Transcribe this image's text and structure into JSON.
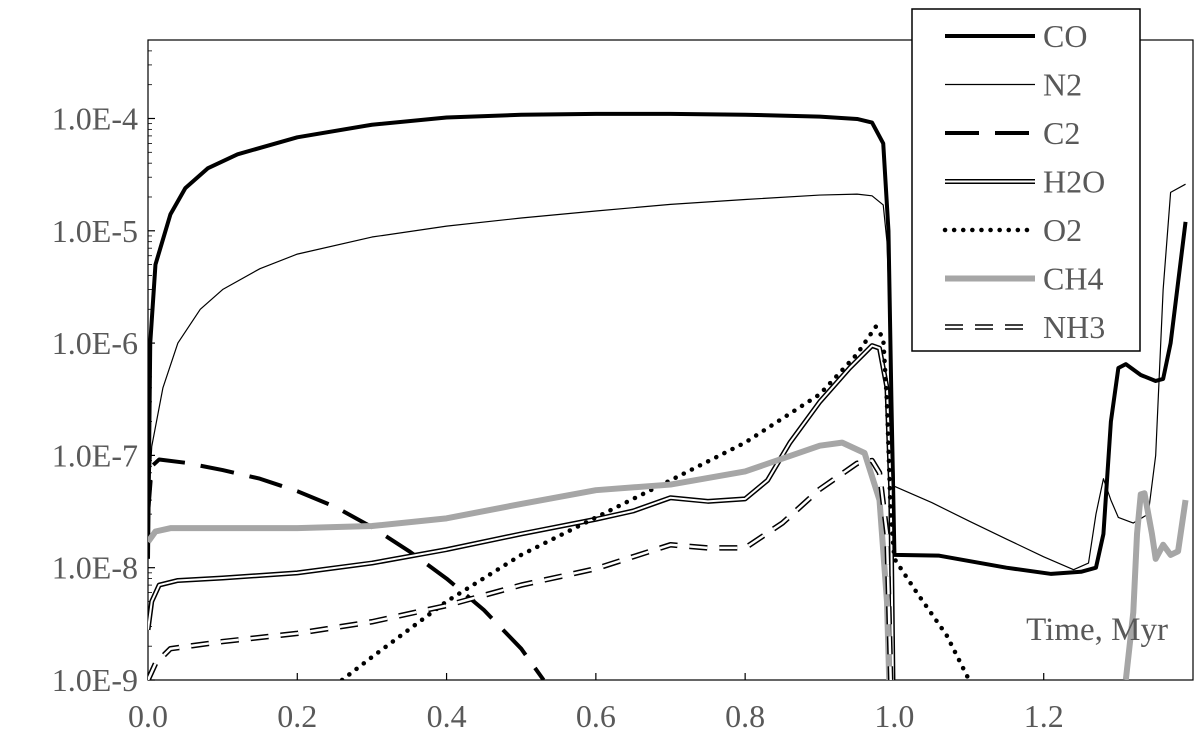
{
  "chart_data": {
    "type": "line",
    "title": "",
    "xlabel": "Time, Myr",
    "ylabel": "",
    "yscale": "log",
    "xlim": [
      0,
      1.4
    ],
    "ylim": [
      1e-09,
      0.0005
    ],
    "xticks": [
      0.0,
      0.2,
      0.4,
      0.6,
      0.8,
      1.0,
      1.2
    ],
    "xtick_labels": [
      "0.0",
      "0.2",
      "0.4",
      "0.6",
      "0.8",
      "1.0",
      "1.2"
    ],
    "yticks": [
      1e-09,
      1e-08,
      1e-07,
      1e-06,
      1e-05,
      0.0001
    ],
    "ytick_labels": [
      "1.0E-9",
      "1.0E-8",
      "1.0E-7",
      "1.0E-6",
      "1.0E-5",
      "1.0E-4"
    ],
    "grid": false,
    "legend_position": "top-right",
    "series": [
      {
        "name": "CO",
        "color": "#000000",
        "style": "thick-solid",
        "points": [
          [
            0,
            1.2e-08
          ],
          [
            0.003,
            1e-06
          ],
          [
            0.01,
            5e-06
          ],
          [
            0.03,
            1.4e-05
          ],
          [
            0.05,
            2.4e-05
          ],
          [
            0.08,
            3.6e-05
          ],
          [
            0.12,
            4.8e-05
          ],
          [
            0.2,
            6.8e-05
          ],
          [
            0.3,
            8.8e-05
          ],
          [
            0.4,
            0.000102
          ],
          [
            0.5,
            0.000108
          ],
          [
            0.6,
            0.00011
          ],
          [
            0.7,
            0.00011
          ],
          [
            0.8,
            0.000108
          ],
          [
            0.9,
            0.000104
          ],
          [
            0.95,
            9.9e-05
          ],
          [
            0.97,
            9.2e-05
          ],
          [
            0.985,
            6e-05
          ],
          [
            0.992,
            1e-05
          ],
          [
            0.996,
            3e-07
          ],
          [
            1.0,
            1.3e-08
          ],
          [
            1.06,
            1.28e-08
          ],
          [
            1.15,
            1e-08
          ],
          [
            1.21,
            8.8e-09
          ],
          [
            1.25,
            9.2e-09
          ],
          [
            1.27,
            1e-08
          ],
          [
            1.28,
            2e-08
          ],
          [
            1.29,
            2e-07
          ],
          [
            1.3,
            6e-07
          ],
          [
            1.31,
            6.5e-07
          ],
          [
            1.33,
            5.2e-07
          ],
          [
            1.35,
            4.6e-07
          ],
          [
            1.36,
            4.8e-07
          ],
          [
            1.37,
            1e-06
          ],
          [
            1.39,
            1.2e-05
          ]
        ]
      },
      {
        "name": "N2",
        "color": "#000000",
        "style": "thin-solid",
        "points": [
          [
            0,
            3e-08
          ],
          [
            0.005,
            1.2e-07
          ],
          [
            0.02,
            4e-07
          ],
          [
            0.04,
            1e-06
          ],
          [
            0.07,
            2e-06
          ],
          [
            0.1,
            3e-06
          ],
          [
            0.15,
            4.6e-06
          ],
          [
            0.2,
            6.2e-06
          ],
          [
            0.3,
            8.8e-06
          ],
          [
            0.4,
            1.1e-05
          ],
          [
            0.5,
            1.3e-05
          ],
          [
            0.6,
            1.5e-05
          ],
          [
            0.7,
            1.72e-05
          ],
          [
            0.8,
            1.9e-05
          ],
          [
            0.9,
            2.08e-05
          ],
          [
            0.95,
            2.12e-05
          ],
          [
            0.97,
            2.05e-05
          ],
          [
            0.985,
            1.7e-05
          ],
          [
            0.99,
            8e-06
          ],
          [
            0.995,
            1e-06
          ],
          [
            0.998,
            1.5e-07
          ],
          [
            1.0,
            5.3e-08
          ],
          [
            1.05,
            3.8e-08
          ],
          [
            1.1,
            2.6e-08
          ],
          [
            1.15,
            1.8e-08
          ],
          [
            1.2,
            1.25e-08
          ],
          [
            1.24,
            9.6e-09
          ],
          [
            1.26,
            1.1e-08
          ],
          [
            1.27,
            3e-08
          ],
          [
            1.28,
            6.2e-08
          ],
          [
            1.29,
            4e-08
          ],
          [
            1.3,
            2.8e-08
          ],
          [
            1.32,
            2.5e-08
          ],
          [
            1.34,
            3e-08
          ],
          [
            1.35,
            1e-07
          ],
          [
            1.36,
            3e-06
          ],
          [
            1.37,
            2.2e-05
          ],
          [
            1.39,
            2.6e-05
          ]
        ]
      },
      {
        "name": "C2",
        "color": "#000000",
        "style": "long-dash",
        "points": [
          [
            0,
            3e-08
          ],
          [
            0.005,
            8e-08
          ],
          [
            0.015,
            9.2e-08
          ],
          [
            0.05,
            8.6e-08
          ],
          [
            0.1,
            7.4e-08
          ],
          [
            0.15,
            6.2e-08
          ],
          [
            0.2,
            4.8e-08
          ],
          [
            0.25,
            3.5e-08
          ],
          [
            0.3,
            2.3e-08
          ],
          [
            0.35,
            1.4e-08
          ],
          [
            0.4,
            8e-09
          ],
          [
            0.45,
            4.2e-09
          ],
          [
            0.5,
            1.9e-09
          ],
          [
            0.53,
            1e-09
          ]
        ]
      },
      {
        "name": "H2O",
        "color": "#000000",
        "style": "double-line",
        "points": [
          [
            0,
            2.8e-09
          ],
          [
            0.005,
            5e-09
          ],
          [
            0.015,
            7e-09
          ],
          [
            0.04,
            7.7e-09
          ],
          [
            0.1,
            8.1e-09
          ],
          [
            0.2,
            9e-09
          ],
          [
            0.3,
            1.1e-08
          ],
          [
            0.4,
            1.45e-08
          ],
          [
            0.5,
            2e-08
          ],
          [
            0.6,
            2.7e-08
          ],
          [
            0.65,
            3.2e-08
          ],
          [
            0.7,
            4.2e-08
          ],
          [
            0.75,
            3.9e-08
          ],
          [
            0.8,
            4.1e-08
          ],
          [
            0.83,
            6e-08
          ],
          [
            0.86,
            1.3e-07
          ],
          [
            0.9,
            3e-07
          ],
          [
            0.94,
            6e-07
          ],
          [
            0.97,
            9.5e-07
          ],
          [
            0.98,
            9e-07
          ],
          [
            0.99,
            4e-07
          ],
          [
            0.995,
            5e-08
          ],
          [
            0.998,
            1e-09
          ]
        ]
      },
      {
        "name": "O2",
        "color": "#000000",
        "style": "dotted",
        "points": [
          [
            0.26,
            1e-09
          ],
          [
            0.3,
            1.6e-09
          ],
          [
            0.4,
            5e-09
          ],
          [
            0.5,
            1.3e-08
          ],
          [
            0.6,
            2.8e-08
          ],
          [
            0.7,
            6e-08
          ],
          [
            0.8,
            1.3e-07
          ],
          [
            0.9,
            3.5e-07
          ],
          [
            0.95,
            8e-07
          ],
          [
            0.975,
            1.4e-06
          ],
          [
            0.985,
            1.1e-06
          ],
          [
            0.99,
            3e-07
          ],
          [
            0.995,
            3e-08
          ],
          [
            1.0,
            1.2e-08
          ],
          [
            1.03,
            6e-09
          ],
          [
            1.07,
            2.5e-09
          ],
          [
            1.1,
            1e-09
          ]
        ]
      },
      {
        "name": "CH4",
        "color": "#a6a6a6",
        "style": "thick-solid",
        "points": [
          [
            0,
            1.7e-08
          ],
          [
            0.01,
            2.1e-08
          ],
          [
            0.03,
            2.25e-08
          ],
          [
            0.1,
            2.25e-08
          ],
          [
            0.2,
            2.25e-08
          ],
          [
            0.3,
            2.35e-08
          ],
          [
            0.4,
            2.75e-08
          ],
          [
            0.5,
            3.7e-08
          ],
          [
            0.6,
            4.9e-08
          ],
          [
            0.7,
            5.5e-08
          ],
          [
            0.8,
            7.2e-08
          ],
          [
            0.9,
            1.22e-07
          ],
          [
            0.93,
            1.3e-07
          ],
          [
            0.96,
            1.05e-07
          ],
          [
            0.98,
            4e-08
          ],
          [
            0.99,
            5e-09
          ],
          [
            0.993,
            1e-09
          ]
        ],
        "points2": [
          [
            1.31,
            1e-09
          ],
          [
            1.32,
            4e-09
          ],
          [
            1.325,
            2e-08
          ],
          [
            1.33,
            4.5e-08
          ],
          [
            1.335,
            4.6e-08
          ],
          [
            1.345,
            2e-08
          ],
          [
            1.35,
            1.2e-08
          ],
          [
            1.36,
            1.6e-08
          ],
          [
            1.37,
            1.3e-08
          ],
          [
            1.38,
            1.4e-08
          ],
          [
            1.39,
            4e-08
          ]
        ]
      },
      {
        "name": "NH3",
        "color": "#000000",
        "style": "dash-double",
        "points": [
          [
            0,
            1e-09
          ],
          [
            0.01,
            1.4e-09
          ],
          [
            0.03,
            1.9e-09
          ],
          [
            0.1,
            2.2e-09
          ],
          [
            0.2,
            2.6e-09
          ],
          [
            0.3,
            3.3e-09
          ],
          [
            0.4,
            4.6e-09
          ],
          [
            0.5,
            7e-09
          ],
          [
            0.6,
            9.8e-09
          ],
          [
            0.7,
            1.6e-08
          ],
          [
            0.75,
            1.5e-08
          ],
          [
            0.8,
            1.5e-08
          ],
          [
            0.85,
            2.5e-08
          ],
          [
            0.9,
            5e-08
          ],
          [
            0.95,
            8.5e-08
          ],
          [
            0.97,
            9e-08
          ],
          [
            0.98,
            7e-08
          ],
          [
            0.99,
            2e-08
          ],
          [
            0.995,
            1e-09
          ]
        ]
      }
    ]
  }
}
